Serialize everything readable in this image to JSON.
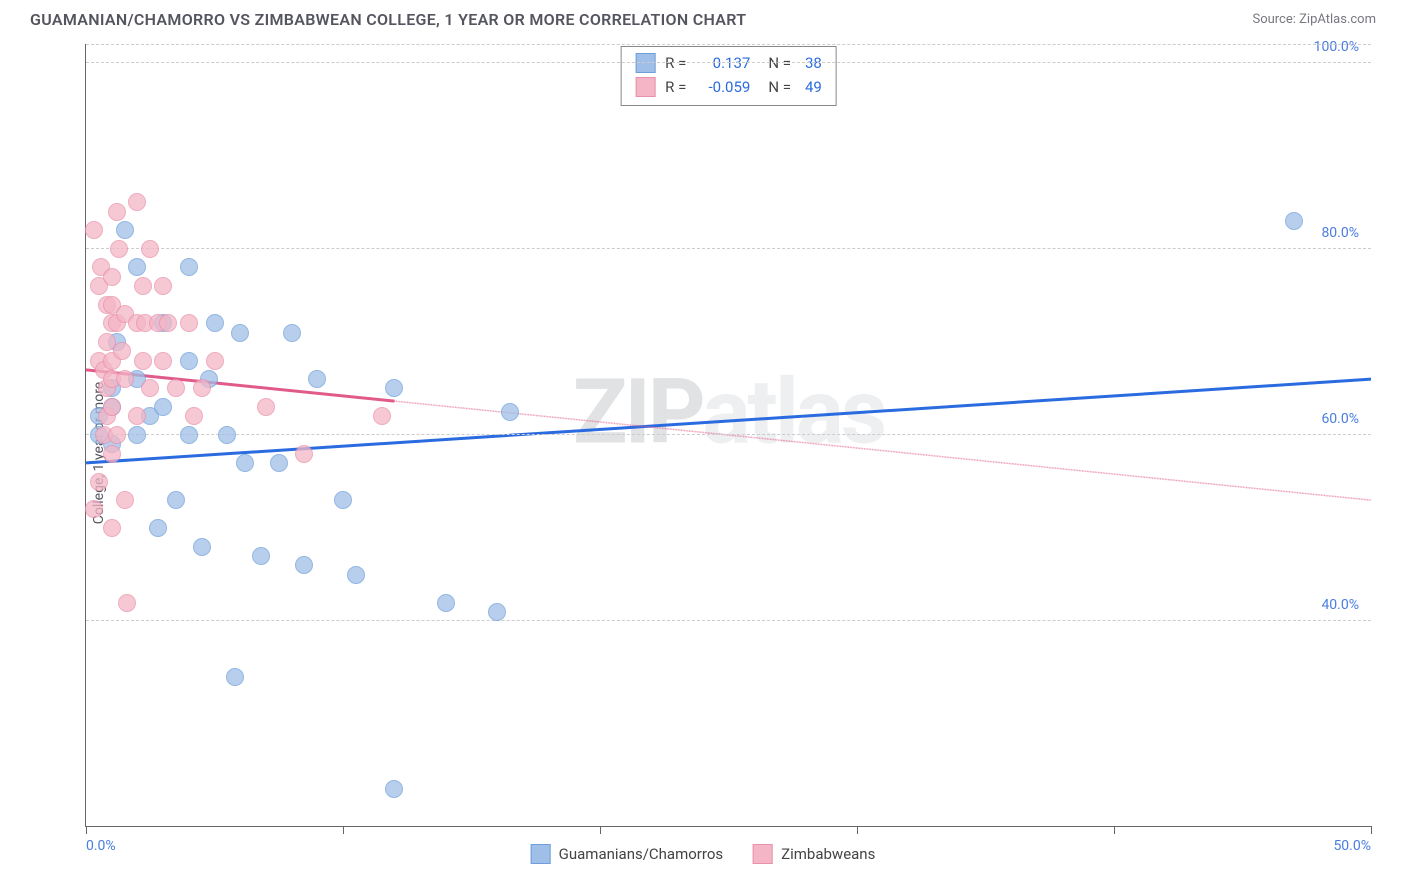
{
  "header": {
    "title": "GUAMANIAN/CHAMORRO VS ZIMBABWEAN COLLEGE, 1 YEAR OR MORE CORRELATION CHART",
    "source": "Source: ZipAtlas.com"
  },
  "chart": {
    "type": "scatter",
    "ylabel": "College, 1 year or more",
    "xlim": [
      0,
      50
    ],
    "ylim": [
      18,
      102
    ],
    "xticks": [
      {
        "v": 0,
        "l": "0.0%"
      },
      {
        "v": 50,
        "l": "50.0%"
      }
    ],
    "xtick_marks": [
      0,
      10,
      20,
      30,
      40,
      50
    ],
    "yticks": [
      {
        "v": 40,
        "l": "40.0%"
      },
      {
        "v": 60,
        "l": "60.0%"
      },
      {
        "v": 80,
        "l": "80.0%"
      },
      {
        "v": 100,
        "l": "100.0%"
      }
    ],
    "grid_color": "#cccccc",
    "background_color": "#ffffff",
    "watermark": "ZIPatlas",
    "series": [
      {
        "name": "Guamanians/Chamorros",
        "fill": "#9fbfe8",
        "stroke": "#6f9fda",
        "line_color": "#2a6be0",
        "line_width": 3,
        "solid_until": 50,
        "regression": {
          "x1": 0,
          "y1": 57,
          "x2": 50,
          "y2": 66
        },
        "r": 0.137,
        "n": 38,
        "points": [
          {
            "x": 0.5,
            "y": 60
          },
          {
            "x": 0.5,
            "y": 62
          },
          {
            "x": 1,
            "y": 65
          },
          {
            "x": 1,
            "y": 59
          },
          {
            "x": 1,
            "y": 63
          },
          {
            "x": 1.2,
            "y": 70
          },
          {
            "x": 1.5,
            "y": 82
          },
          {
            "x": 2,
            "y": 78
          },
          {
            "x": 2,
            "y": 60
          },
          {
            "x": 2,
            "y": 66
          },
          {
            "x": 2.5,
            "y": 62
          },
          {
            "x": 2.8,
            "y": 50
          },
          {
            "x": 3,
            "y": 63
          },
          {
            "x": 3,
            "y": 72
          },
          {
            "x": 3.5,
            "y": 53
          },
          {
            "x": 4,
            "y": 78
          },
          {
            "x": 4,
            "y": 68
          },
          {
            "x": 4,
            "y": 60
          },
          {
            "x": 4.5,
            "y": 48
          },
          {
            "x": 4.8,
            "y": 66
          },
          {
            "x": 5,
            "y": 72
          },
          {
            "x": 5.5,
            "y": 60
          },
          {
            "x": 5.8,
            "y": 34
          },
          {
            "x": 6,
            "y": 71
          },
          {
            "x": 6.2,
            "y": 57
          },
          {
            "x": 6.8,
            "y": 47
          },
          {
            "x": 7.5,
            "y": 57
          },
          {
            "x": 8,
            "y": 71
          },
          {
            "x": 8.5,
            "y": 46
          },
          {
            "x": 9,
            "y": 66
          },
          {
            "x": 10,
            "y": 53
          },
          {
            "x": 10.5,
            "y": 45
          },
          {
            "x": 12,
            "y": 65
          },
          {
            "x": 12,
            "y": 22
          },
          {
            "x": 14,
            "y": 42
          },
          {
            "x": 16,
            "y": 41
          },
          {
            "x": 16.5,
            "y": 62.5
          },
          {
            "x": 47,
            "y": 83
          }
        ]
      },
      {
        "name": "Zimbabweans",
        "fill": "#f4b6c6",
        "stroke": "#e991ab",
        "line_color": "#e15a8a",
        "line_width": 3,
        "solid_until": 12,
        "regression": {
          "x1": 0,
          "y1": 67,
          "x2": 50,
          "y2": 53
        },
        "r": -0.059,
        "n": 49,
        "points": [
          {
            "x": 0.3,
            "y": 82
          },
          {
            "x": 0.3,
            "y": 52
          },
          {
            "x": 0.5,
            "y": 76
          },
          {
            "x": 0.5,
            "y": 68
          },
          {
            "x": 0.5,
            "y": 55
          },
          {
            "x": 0.6,
            "y": 78
          },
          {
            "x": 0.7,
            "y": 67
          },
          {
            "x": 0.7,
            "y": 60
          },
          {
            "x": 0.8,
            "y": 74
          },
          {
            "x": 0.8,
            "y": 70
          },
          {
            "x": 0.8,
            "y": 65
          },
          {
            "x": 0.8,
            "y": 62
          },
          {
            "x": 1,
            "y": 77
          },
          {
            "x": 1,
            "y": 74
          },
          {
            "x": 1,
            "y": 72
          },
          {
            "x": 1,
            "y": 68
          },
          {
            "x": 1,
            "y": 66
          },
          {
            "x": 1,
            "y": 63
          },
          {
            "x": 1,
            "y": 58
          },
          {
            "x": 1,
            "y": 50
          },
          {
            "x": 1.2,
            "y": 84
          },
          {
            "x": 1.2,
            "y": 72
          },
          {
            "x": 1.2,
            "y": 60
          },
          {
            "x": 1.4,
            "y": 69
          },
          {
            "x": 1.5,
            "y": 73
          },
          {
            "x": 1.5,
            "y": 66
          },
          {
            "x": 1.5,
            "y": 53
          },
          {
            "x": 1.6,
            "y": 42
          },
          {
            "x": 2,
            "y": 85
          },
          {
            "x": 2,
            "y": 72
          },
          {
            "x": 2,
            "y": 62
          },
          {
            "x": 2.2,
            "y": 76
          },
          {
            "x": 2.2,
            "y": 68
          },
          {
            "x": 2.3,
            "y": 72
          },
          {
            "x": 2.5,
            "y": 80
          },
          {
            "x": 2.5,
            "y": 65
          },
          {
            "x": 2.8,
            "y": 72
          },
          {
            "x": 3,
            "y": 76
          },
          {
            "x": 3,
            "y": 68
          },
          {
            "x": 3.2,
            "y": 72
          },
          {
            "x": 3.5,
            "y": 65
          },
          {
            "x": 4,
            "y": 72
          },
          {
            "x": 4.2,
            "y": 62
          },
          {
            "x": 4.5,
            "y": 65
          },
          {
            "x": 5,
            "y": 68
          },
          {
            "x": 7,
            "y": 63
          },
          {
            "x": 8.5,
            "y": 58
          },
          {
            "x": 11.5,
            "y": 62
          },
          {
            "x": 1.3,
            "y": 80
          }
        ]
      }
    ],
    "legend_stats": {
      "r_label": "R  =",
      "n_label": "N  ="
    },
    "bottom_legend": [
      "Guamanians/Chamorros",
      "Zimbabweans"
    ]
  }
}
